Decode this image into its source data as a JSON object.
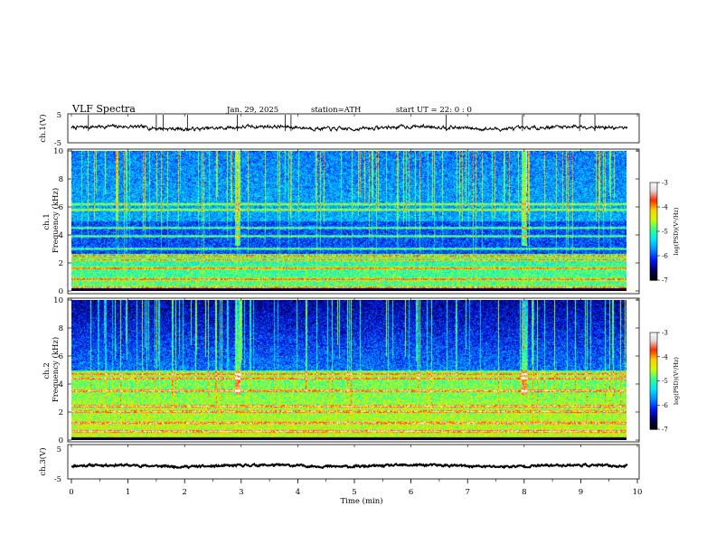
{
  "header": {
    "title": "VLF  Spectra",
    "date": "Jan. 29, 2025",
    "station": "station=ATH",
    "start_time": "start  UT  =   22: 0   : 0"
  },
  "chart_data": [
    {
      "id": "ch1-timeseries",
      "type": "line",
      "ylabel": "ch.1(V)",
      "ylim": [
        -5,
        5
      ],
      "yticks": [
        "5",
        "-5"
      ],
      "xlim": [
        0,
        10
      ],
      "baseline": 0.2,
      "noise_amplitude": 0.5,
      "spike_times": [
        0.3,
        1.5,
        1.62,
        2.05,
        2.93,
        3.78,
        3.88,
        6.62,
        7.97,
        8.98,
        9.25
      ]
    },
    {
      "id": "ch1-spectrogram",
      "type": "heatmap",
      "ylabel": "ch.1\nFrequency (kHz)",
      "ylim": [
        0,
        10
      ],
      "yticks": [
        "0",
        "2",
        "4",
        "6",
        "8",
        "10"
      ],
      "xlim": [
        0,
        10
      ],
      "colorbar": {
        "label": "log(PSD)(V²/Hz)",
        "range": [
          -7,
          -3
        ],
        "ticks": [
          "-3",
          "-4",
          "-5",
          "-6",
          "-7"
        ]
      },
      "bands_khz": [
        0.2,
        0.8,
        1.6,
        2.2,
        2.5,
        3.0,
        3.9,
        4.5,
        5.8,
        6.2
      ],
      "burst_times_min": [
        2.93,
        8.0
      ]
    },
    {
      "id": "ch2-spectrogram",
      "type": "heatmap",
      "ylabel": "ch.2\nFrequency (kHz)",
      "ylim": [
        0,
        10
      ],
      "yticks": [
        "0",
        "2",
        "4",
        "6",
        "8",
        "10"
      ],
      "xlim": [
        0,
        10
      ],
      "colorbar": {
        "label": "log(PSD)(V²/Hz)",
        "range": [
          -7,
          -3
        ],
        "ticks": [
          "-3",
          "-4",
          "-5",
          "-6",
          "-7"
        ]
      },
      "bands_khz": [
        0.6,
        1.2,
        2.0,
        2.4,
        3.5,
        4.4,
        4.7
      ],
      "burst_times_min": [
        2.93,
        8.0
      ]
    },
    {
      "id": "ch3-timeseries",
      "type": "line",
      "ylabel": "ch.3(V)",
      "ylim": [
        -5,
        5
      ],
      "yticks": [
        "5",
        "-5"
      ],
      "xlim": [
        0,
        10
      ],
      "baseline": -1.2,
      "noise_amplitude": 0.25
    }
  ],
  "x_axis": {
    "label": "Time  (min)",
    "ticks": [
      "0",
      "1",
      "2",
      "3",
      "4",
      "5",
      "6",
      "7",
      "8",
      "9",
      "10"
    ],
    "data_end": 9.82
  },
  "colormap": [
    "#000000",
    "#00006a",
    "#0018ff",
    "#0090ff",
    "#00e4ff",
    "#30ff90",
    "#c8ff00",
    "#ffd000",
    "#ff2a00",
    "#e0e0e0",
    "#ffffff"
  ]
}
